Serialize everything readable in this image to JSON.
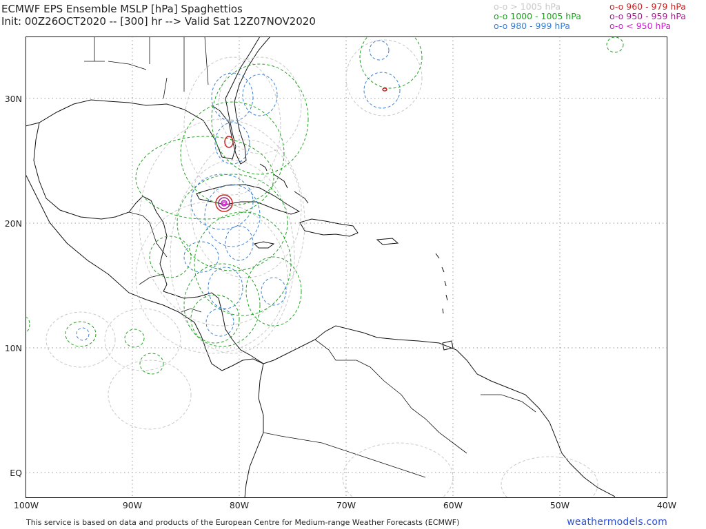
{
  "title": {
    "line1": "ECMWF EPS Ensemble MSLP [hPa] Spaghettios",
    "line2": "Init: 00Z26OCT2020 -- [300] hr --> Valid Sat 12Z07NOV2020"
  },
  "legend": [
    {
      "label": "o-o > 1005 hPa",
      "color": "#c8c8c8"
    },
    {
      "label": "o-o 1000 - 1005 hPa",
      "color": "#22a022"
    },
    {
      "label": "o-o 980 - 999 hPa",
      "color": "#3a7fd0"
    },
    {
      "label": "o-o 960 - 979 hPa",
      "color": "#cc2222"
    },
    {
      "label": "o-o 950 - 959 hPa",
      "color": "#a0208a"
    },
    {
      "label": "o-o < 950 hPa",
      "color": "#cc22cc"
    }
  ],
  "axes": {
    "lat_labels": [
      "30N",
      "20N",
      "10N",
      "EQ"
    ],
    "lon_labels": [
      "100W",
      "90W",
      "80W",
      "70W",
      "60W",
      "50W",
      "40W"
    ]
  },
  "footer": "This service is based on data and products of the European Centre for Medium-range Weather Forecasts (ECMWF)",
  "brand": "weathermodels.com"
}
